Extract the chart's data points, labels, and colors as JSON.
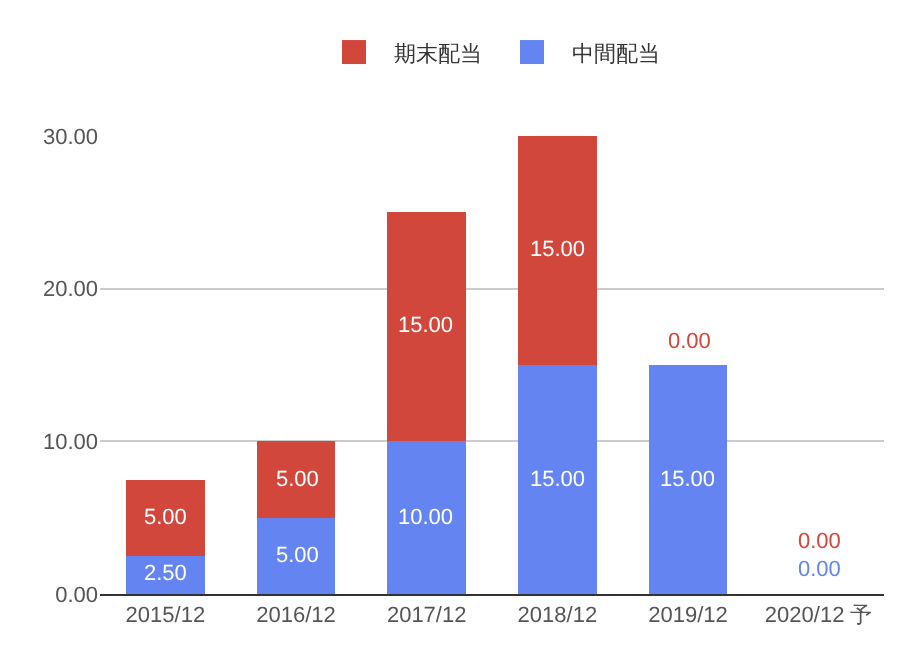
{
  "chart_data": {
    "type": "bar",
    "stacked": true,
    "categories": [
      "2015/12",
      "2016/12",
      "2017/12",
      "2018/12",
      "2019/12",
      "2020/12 予"
    ],
    "series": [
      {
        "name": "中間配当",
        "color": "#6484f1",
        "values": [
          2.5,
          5,
          10,
          15,
          15,
          0
        ],
        "value_labels": [
          "2.50",
          "5.00",
          "10.00",
          "15.00",
          "15.00",
          "0.00"
        ]
      },
      {
        "name": "期末配当",
        "color": "#d2473b",
        "values": [
          5,
          5,
          15,
          15,
          0,
          0
        ],
        "value_labels": [
          "5.00",
          "5.00",
          "15.00",
          "15.00",
          "0.00",
          "0.00"
        ]
      }
    ],
    "ylim": [
      0,
      30
    ],
    "yticks": [
      {
        "value": 0,
        "label": "0.00"
      },
      {
        "value": 10,
        "label": "10.00"
      },
      {
        "value": 20,
        "label": "20.00"
      },
      {
        "value": 30,
        "label": "30.00"
      }
    ],
    "grid": "y",
    "legend": "top"
  }
}
